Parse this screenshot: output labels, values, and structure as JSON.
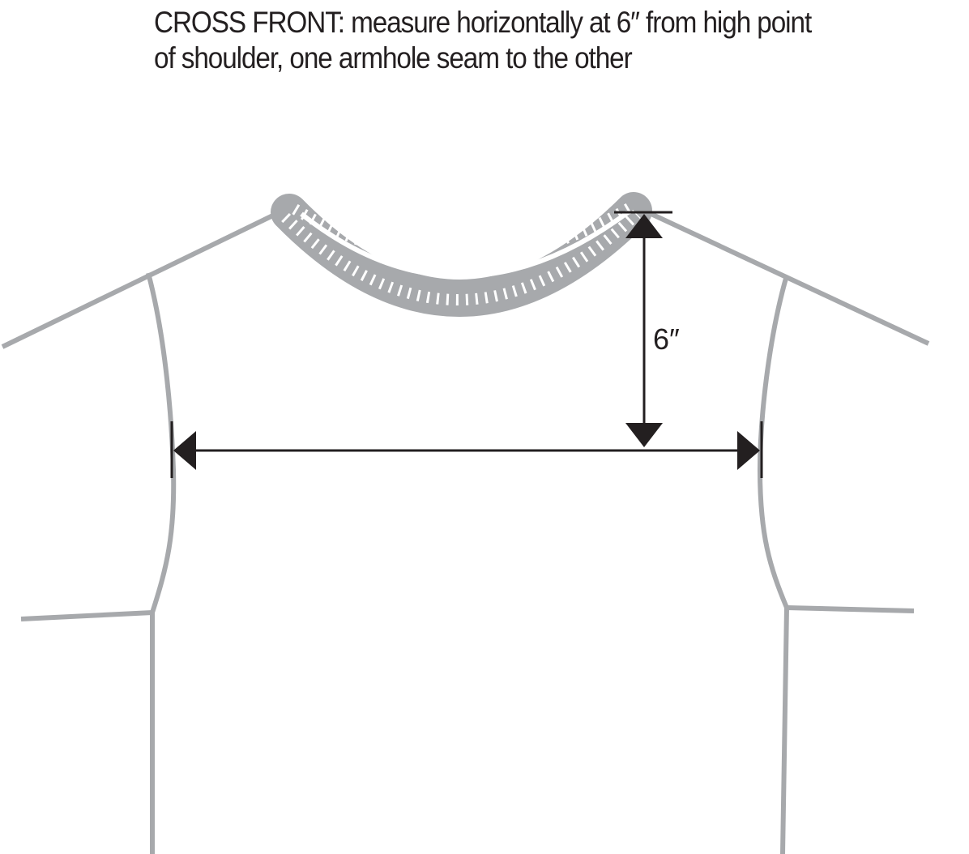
{
  "instructions": {
    "line1": "CROSS FRONT:  measure horizontally at 6″ from high point",
    "line2": "of shoulder, one armhole seam to the other"
  },
  "measurement": {
    "vertical_label": "6″"
  },
  "colors": {
    "garment": "#a7a9ac",
    "arrow": "#231f20",
    "text": "#231f20"
  }
}
